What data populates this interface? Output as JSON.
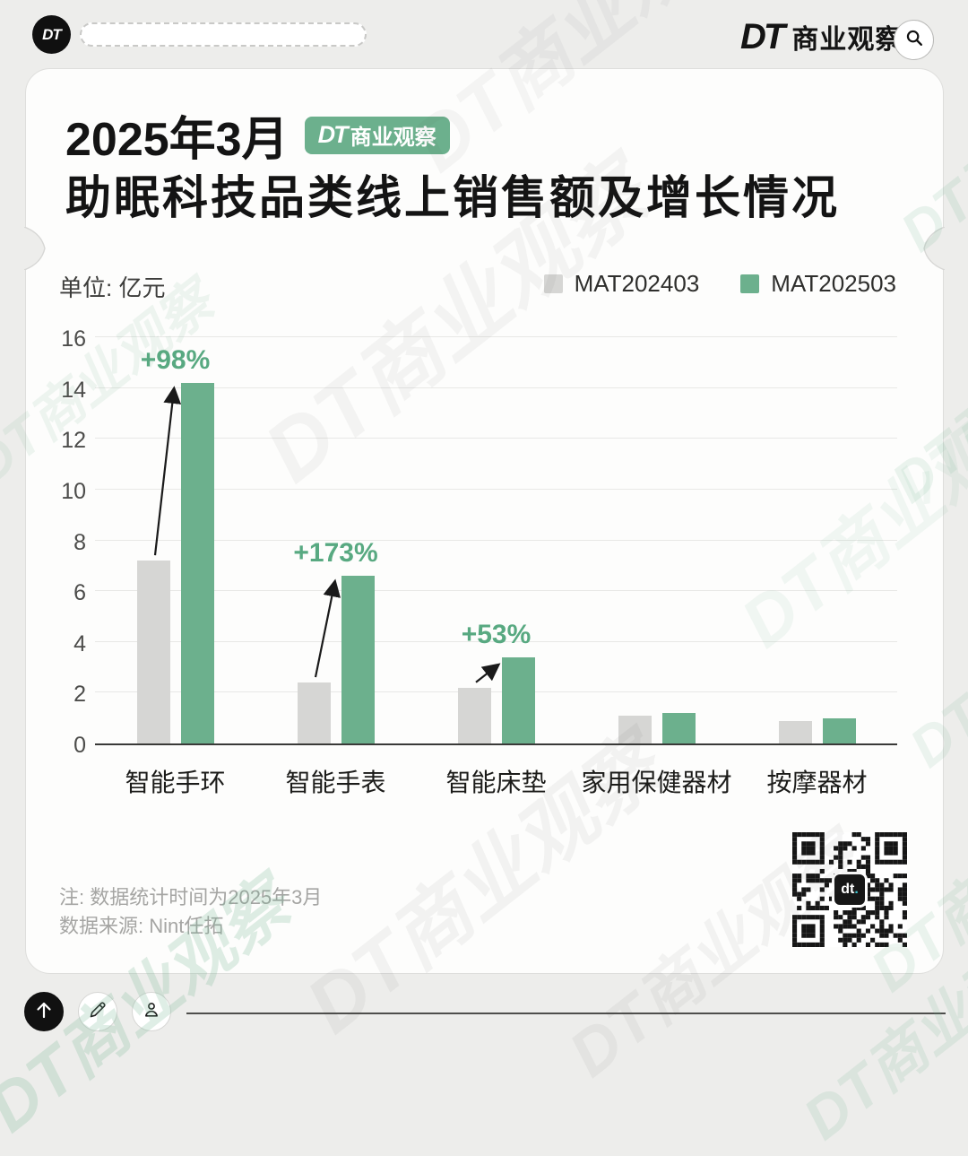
{
  "header": {
    "logo": "DT",
    "brand_dt": "DT",
    "brand_name": "商业观察"
  },
  "card": {
    "title_date": "2025年3月",
    "badge_dt": "DT",
    "badge_name": "商业观察",
    "title_main": "助眠科技品类线上销售额及增长情况",
    "unit_label": "单位: 亿元",
    "note_line1": "注: 数据统计时间为2025年3月",
    "note_line2": "数据来源: Nint任拓"
  },
  "chart_data": {
    "type": "bar",
    "title": "2025年3月助眠科技品类线上销售额及增长情况",
    "unit": "亿元",
    "categories": [
      "智能手环",
      "智能手表",
      "智能床垫",
      "家用保健器材",
      "按摩器材"
    ],
    "series": [
      {
        "name": "MAT202403",
        "color": "#d6d6d4",
        "values": [
          7.2,
          2.4,
          2.2,
          1.1,
          0.9
        ]
      },
      {
        "name": "MAT202503",
        "color": "#6cb08d",
        "values": [
          14.2,
          6.6,
          3.4,
          1.2,
          1.0
        ]
      }
    ],
    "growth_labels": [
      "+98%",
      "+173%",
      "+53%",
      null,
      null
    ],
    "ylim": [
      0,
      16
    ],
    "ytick_step": 2,
    "grid": true,
    "legend_position": "top-right"
  },
  "qr": {
    "label_main": "dt",
    "label_dot": "."
  },
  "watermark": {
    "text": "DT商业观察"
  },
  "colors": {
    "green": "#6cb08d",
    "green_text": "#58a981",
    "gray_bar": "#d6d6d4"
  }
}
